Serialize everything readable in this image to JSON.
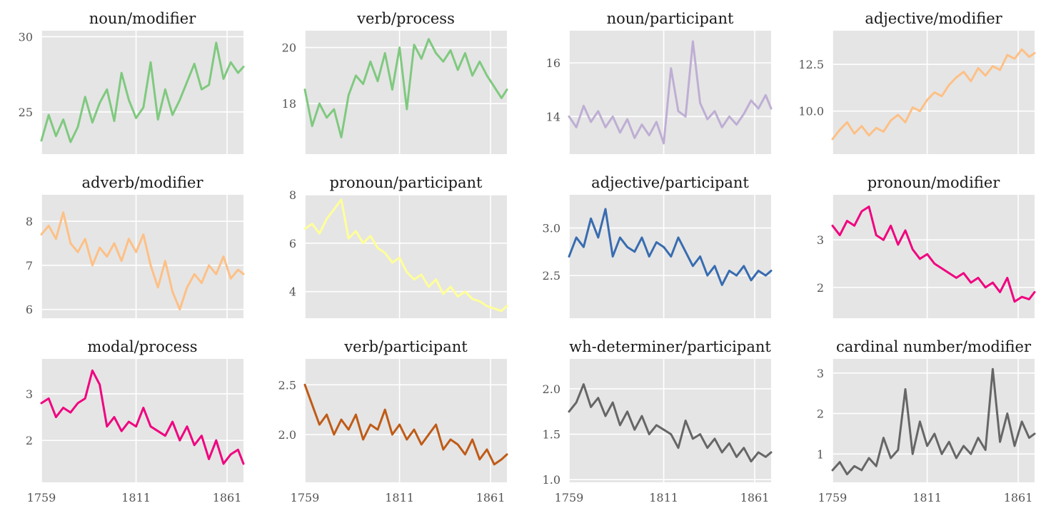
{
  "chart_data": [
    {
      "type": "line",
      "title": "noun/modifier",
      "color": "#7fc97f",
      "x": [
        1759,
        1763,
        1767,
        1771,
        1775,
        1779,
        1783,
        1787,
        1791,
        1795,
        1799,
        1803,
        1807,
        1811,
        1815,
        1819,
        1823,
        1827,
        1831,
        1835,
        1839,
        1843,
        1847,
        1851,
        1855,
        1859,
        1863,
        1867,
        1870
      ],
      "y": [
        23.1,
        24.8,
        23.4,
        24.5,
        23.0,
        24.0,
        26.0,
        24.3,
        25.6,
        26.5,
        24.4,
        27.6,
        25.8,
        24.6,
        25.3,
        28.3,
        24.5,
        26.5,
        24.8,
        25.8,
        27.0,
        28.2,
        26.5,
        26.8,
        29.6,
        27.2,
        28.3,
        27.6,
        28.0
      ],
      "xlim": [
        1759,
        1870
      ],
      "ylim": [
        22.2,
        30.4
      ],
      "yticks": [
        "25",
        "30"
      ],
      "ytick_values": [
        25,
        30
      ],
      "xticks": [
        "1759",
        "1811",
        "1861"
      ],
      "xtick_values": [
        1759,
        1811,
        1861
      ],
      "show_xticklabels": false
    },
    {
      "type": "line",
      "title": "verb/process",
      "color": "#7fc97f",
      "x": [
        1759,
        1763,
        1767,
        1771,
        1775,
        1779,
        1783,
        1787,
        1791,
        1795,
        1799,
        1803,
        1807,
        1811,
        1815,
        1819,
        1823,
        1827,
        1831,
        1835,
        1839,
        1843,
        1847,
        1851,
        1855,
        1859,
        1863,
        1867,
        1870
      ],
      "y": [
        18.5,
        17.2,
        18.0,
        17.5,
        17.8,
        16.8,
        18.3,
        19.0,
        18.7,
        19.5,
        18.8,
        19.8,
        18.5,
        20.0,
        17.8,
        20.1,
        19.6,
        20.3,
        19.8,
        19.5,
        19.9,
        19.2,
        19.8,
        19.0,
        19.5,
        19.0,
        18.6,
        18.2,
        18.5
      ],
      "xlim": [
        1759,
        1870
      ],
      "ylim": [
        16.2,
        20.6
      ],
      "yticks": [
        "18",
        "20"
      ],
      "ytick_values": [
        18,
        20
      ],
      "xticks": [
        "1759",
        "1811",
        "1861"
      ],
      "xtick_values": [
        1759,
        1811,
        1861
      ],
      "show_xticklabels": false
    },
    {
      "type": "line",
      "title": "noun/participant",
      "color": "#beaed4",
      "x": [
        1759,
        1763,
        1767,
        1771,
        1775,
        1779,
        1783,
        1787,
        1791,
        1795,
        1799,
        1803,
        1807,
        1811,
        1815,
        1819,
        1823,
        1827,
        1831,
        1835,
        1839,
        1843,
        1847,
        1851,
        1855,
        1859,
        1863,
        1867,
        1870
      ],
      "y": [
        14.0,
        13.6,
        14.4,
        13.8,
        14.2,
        13.6,
        14.0,
        13.4,
        13.9,
        13.2,
        13.7,
        13.3,
        13.8,
        13.0,
        15.8,
        14.2,
        14.0,
        16.8,
        14.5,
        13.9,
        14.2,
        13.6,
        14.0,
        13.7,
        14.1,
        14.6,
        14.3,
        14.8,
        14.3
      ],
      "xlim": [
        1759,
        1870
      ],
      "ylim": [
        12.6,
        17.2
      ],
      "yticks": [
        "14",
        "16"
      ],
      "ytick_values": [
        14,
        16
      ],
      "xticks": [
        "1759",
        "1811",
        "1861"
      ],
      "xtick_values": [
        1759,
        1811,
        1861
      ],
      "show_xticklabels": false
    },
    {
      "type": "line",
      "title": "adjective/modifier",
      "color": "#fdc086",
      "x": [
        1759,
        1763,
        1767,
        1771,
        1775,
        1779,
        1783,
        1787,
        1791,
        1795,
        1799,
        1803,
        1807,
        1811,
        1815,
        1819,
        1823,
        1827,
        1831,
        1835,
        1839,
        1843,
        1847,
        1851,
        1855,
        1859,
        1863,
        1867,
        1870
      ],
      "y": [
        8.5,
        9.0,
        9.4,
        8.8,
        9.2,
        8.7,
        9.1,
        8.9,
        9.5,
        9.8,
        9.4,
        10.2,
        10.0,
        10.6,
        11.0,
        10.8,
        11.4,
        11.8,
        12.1,
        11.6,
        12.3,
        11.9,
        12.4,
        12.2,
        13.0,
        12.8,
        13.3,
        12.9,
        13.1
      ],
      "xlim": [
        1759,
        1870
      ],
      "ylim": [
        7.7,
        14.3
      ],
      "yticks": [
        "10.0",
        "12.5"
      ],
      "ytick_values": [
        10,
        12.5
      ],
      "xticks": [
        "1759",
        "1811",
        "1861"
      ],
      "xtick_values": [
        1759,
        1811,
        1861
      ],
      "show_xticklabels": false
    },
    {
      "type": "line",
      "title": "adverb/modifier",
      "color": "#fdc086",
      "x": [
        1759,
        1763,
        1767,
        1771,
        1775,
        1779,
        1783,
        1787,
        1791,
        1795,
        1799,
        1803,
        1807,
        1811,
        1815,
        1819,
        1823,
        1827,
        1831,
        1835,
        1839,
        1843,
        1847,
        1851,
        1855,
        1859,
        1863,
        1867,
        1870
      ],
      "y": [
        7.7,
        7.9,
        7.6,
        8.2,
        7.5,
        7.3,
        7.6,
        7.0,
        7.4,
        7.2,
        7.5,
        7.1,
        7.6,
        7.3,
        7.7,
        7.0,
        6.5,
        7.1,
        6.4,
        6.0,
        6.5,
        6.8,
        6.6,
        7.0,
        6.8,
        7.2,
        6.7,
        6.9,
        6.8
      ],
      "xlim": [
        1759,
        1870
      ],
      "ylim": [
        5.8,
        8.6
      ],
      "yticks": [
        "6",
        "7",
        "8"
      ],
      "ytick_values": [
        6,
        7,
        8
      ],
      "xticks": [
        "1759",
        "1811",
        "1861"
      ],
      "xtick_values": [
        1759,
        1811,
        1861
      ],
      "show_xticklabels": false
    },
    {
      "type": "line",
      "title": "pronoun/participant",
      "color": "#ffff99",
      "x": [
        1759,
        1763,
        1767,
        1771,
        1775,
        1779,
        1783,
        1787,
        1791,
        1795,
        1799,
        1803,
        1807,
        1811,
        1815,
        1819,
        1823,
        1827,
        1831,
        1835,
        1839,
        1843,
        1847,
        1851,
        1855,
        1859,
        1863,
        1867,
        1870
      ],
      "y": [
        6.6,
        6.8,
        6.4,
        7.0,
        7.4,
        7.8,
        6.2,
        6.5,
        6.0,
        6.3,
        5.8,
        5.6,
        5.2,
        5.4,
        4.8,
        4.5,
        4.7,
        4.2,
        4.5,
        3.9,
        4.2,
        3.8,
        4.0,
        3.7,
        3.6,
        3.4,
        3.3,
        3.2,
        3.4
      ],
      "xlim": [
        1759,
        1870
      ],
      "ylim": [
        2.9,
        8.0
      ],
      "yticks": [
        "4",
        "6",
        "8"
      ],
      "ytick_values": [
        4,
        6,
        8
      ],
      "xticks": [
        "1759",
        "1811",
        "1861"
      ],
      "xtick_values": [
        1759,
        1811,
        1861
      ],
      "show_xticklabels": false
    },
    {
      "type": "line",
      "title": "adjective/participant",
      "color": "#386cb0",
      "x": [
        1759,
        1763,
        1767,
        1771,
        1775,
        1779,
        1783,
        1787,
        1791,
        1795,
        1799,
        1803,
        1807,
        1811,
        1815,
        1819,
        1823,
        1827,
        1831,
        1835,
        1839,
        1843,
        1847,
        1851,
        1855,
        1859,
        1863,
        1867,
        1870
      ],
      "y": [
        2.7,
        2.9,
        2.8,
        3.1,
        2.9,
        3.2,
        2.7,
        2.9,
        2.8,
        2.75,
        2.9,
        2.7,
        2.85,
        2.8,
        2.7,
        2.9,
        2.75,
        2.6,
        2.7,
        2.5,
        2.6,
        2.4,
        2.55,
        2.5,
        2.6,
        2.45,
        2.55,
        2.5,
        2.55
      ],
      "xlim": [
        1759,
        1870
      ],
      "ylim": [
        2.05,
        3.35
      ],
      "yticks": [
        "2.5",
        "3.0"
      ],
      "ytick_values": [
        2.5,
        3.0
      ],
      "xticks": [
        "1759",
        "1811",
        "1861"
      ],
      "xtick_values": [
        1759,
        1811,
        1861
      ],
      "show_xticklabels": false
    },
    {
      "type": "line",
      "title": "pronoun/modifier",
      "color": "#f0027f",
      "x": [
        1759,
        1763,
        1767,
        1771,
        1775,
        1779,
        1783,
        1787,
        1791,
        1795,
        1799,
        1803,
        1807,
        1811,
        1815,
        1819,
        1823,
        1827,
        1831,
        1835,
        1839,
        1843,
        1847,
        1851,
        1855,
        1859,
        1863,
        1867,
        1870
      ],
      "y": [
        3.3,
        3.1,
        3.4,
        3.3,
        3.6,
        3.7,
        3.1,
        3.0,
        3.3,
        2.9,
        3.2,
        2.8,
        2.6,
        2.7,
        2.5,
        2.4,
        2.3,
        2.2,
        2.3,
        2.1,
        2.2,
        2.0,
        2.1,
        1.9,
        2.2,
        1.7,
        1.8,
        1.75,
        1.9
      ],
      "xlim": [
        1759,
        1870
      ],
      "ylim": [
        1.35,
        3.95
      ],
      "yticks": [
        "2",
        "3"
      ],
      "ytick_values": [
        2,
        3
      ],
      "xticks": [
        "1759",
        "1811",
        "1861"
      ],
      "xtick_values": [
        1759,
        1811,
        1861
      ],
      "show_xticklabels": false
    },
    {
      "type": "line",
      "title": "modal/process",
      "color": "#f0027f",
      "x": [
        1759,
        1763,
        1767,
        1771,
        1775,
        1779,
        1783,
        1787,
        1791,
        1795,
        1799,
        1803,
        1807,
        1811,
        1815,
        1819,
        1823,
        1827,
        1831,
        1835,
        1839,
        1843,
        1847,
        1851,
        1855,
        1859,
        1863,
        1867,
        1870
      ],
      "y": [
        2.8,
        2.9,
        2.5,
        2.7,
        2.6,
        2.8,
        2.9,
        3.5,
        3.2,
        2.3,
        2.5,
        2.2,
        2.4,
        2.3,
        2.7,
        2.3,
        2.2,
        2.1,
        2.4,
        2.0,
        2.3,
        1.9,
        2.1,
        1.6,
        2.0,
        1.5,
        1.7,
        1.8,
        1.5
      ],
      "xlim": [
        1759,
        1870
      ],
      "ylim": [
        1.1,
        3.75
      ],
      "yticks": [
        "2",
        "3"
      ],
      "ytick_values": [
        2,
        3
      ],
      "xticks": [
        "1759",
        "1811",
        "1861"
      ],
      "xtick_values": [
        1759,
        1811,
        1861
      ],
      "show_xticklabels": true
    },
    {
      "type": "line",
      "title": "verb/participant",
      "color": "#bf5b17",
      "x": [
        1759,
        1763,
        1767,
        1771,
        1775,
        1779,
        1783,
        1787,
        1791,
        1795,
        1799,
        1803,
        1807,
        1811,
        1815,
        1819,
        1823,
        1827,
        1831,
        1835,
        1839,
        1843,
        1847,
        1851,
        1855,
        1859,
        1863,
        1867,
        1870
      ],
      "y": [
        2.5,
        2.3,
        2.1,
        2.2,
        2.0,
        2.15,
        2.05,
        2.2,
        1.95,
        2.1,
        2.05,
        2.25,
        2.0,
        2.1,
        1.95,
        2.05,
        1.9,
        2.0,
        2.1,
        1.85,
        1.95,
        1.9,
        1.8,
        1.95,
        1.75,
        1.85,
        1.7,
        1.75,
        1.8
      ],
      "xlim": [
        1759,
        1870
      ],
      "ylim": [
        1.52,
        2.76
      ],
      "yticks": [
        "2.0",
        "2.5"
      ],
      "ytick_values": [
        2.0,
        2.5
      ],
      "xticks": [
        "1759",
        "1811",
        "1861"
      ],
      "xtick_values": [
        1759,
        1811,
        1861
      ],
      "show_xticklabels": true
    },
    {
      "type": "line",
      "title": "wh-determiner/participant",
      "color": "#666666",
      "x": [
        1759,
        1763,
        1767,
        1771,
        1775,
        1779,
        1783,
        1787,
        1791,
        1795,
        1799,
        1803,
        1807,
        1811,
        1815,
        1819,
        1823,
        1827,
        1831,
        1835,
        1839,
        1843,
        1847,
        1851,
        1855,
        1859,
        1863,
        1867,
        1870
      ],
      "y": [
        1.75,
        1.85,
        2.05,
        1.8,
        1.9,
        1.7,
        1.85,
        1.6,
        1.75,
        1.55,
        1.7,
        1.5,
        1.6,
        1.55,
        1.5,
        1.35,
        1.65,
        1.45,
        1.5,
        1.35,
        1.45,
        1.3,
        1.4,
        1.25,
        1.35,
        1.2,
        1.3,
        1.25,
        1.3
      ],
      "xlim": [
        1759,
        1870
      ],
      "ylim": [
        0.97,
        2.33
      ],
      "yticks": [
        "1.0",
        "1.5",
        "2.0"
      ],
      "ytick_values": [
        1.0,
        1.5,
        2.0
      ],
      "xticks": [
        "1759",
        "1811",
        "1861"
      ],
      "xtick_values": [
        1759,
        1811,
        1861
      ],
      "show_xticklabels": true
    },
    {
      "type": "line",
      "title": "cardinal number/modifier",
      "color": "#666666",
      "x": [
        1759,
        1763,
        1767,
        1771,
        1775,
        1779,
        1783,
        1787,
        1791,
        1795,
        1799,
        1803,
        1807,
        1811,
        1815,
        1819,
        1823,
        1827,
        1831,
        1835,
        1839,
        1843,
        1847,
        1851,
        1855,
        1859,
        1863,
        1867,
        1870
      ],
      "y": [
        0.6,
        0.8,
        0.5,
        0.7,
        0.6,
        0.9,
        0.7,
        1.4,
        0.9,
        1.1,
        2.6,
        1.0,
        1.8,
        1.2,
        1.5,
        1.0,
        1.3,
        0.9,
        1.2,
        1.0,
        1.4,
        1.1,
        3.1,
        1.3,
        2.0,
        1.2,
        1.8,
        1.4,
        1.5
      ],
      "xlim": [
        1759,
        1870
      ],
      "ylim": [
        0.3,
        3.35
      ],
      "yticks": [
        "1",
        "2",
        "3"
      ],
      "ytick_values": [
        1,
        2,
        3
      ],
      "xticks": [
        "1759",
        "1811",
        "1861"
      ],
      "xtick_values": [
        1759,
        1811,
        1861
      ],
      "show_xticklabels": true
    }
  ]
}
